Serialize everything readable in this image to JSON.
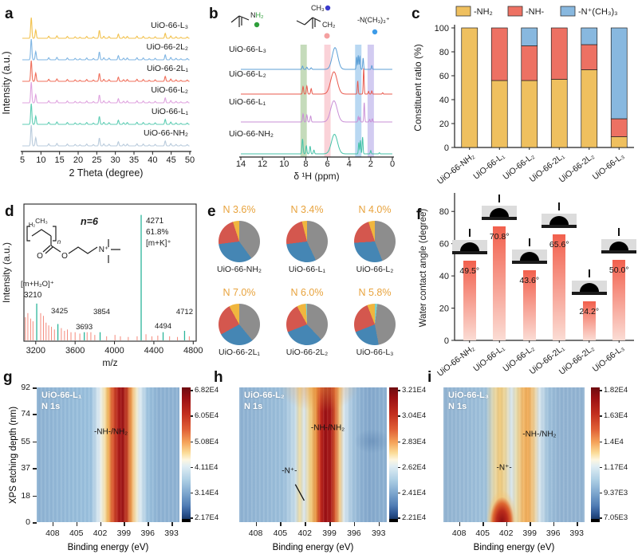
{
  "figure_title": "UiO-66 ligand-functionalization characterization figure",
  "chart_data": [
    {
      "panel": "a",
      "letter": "a",
      "type": "line",
      "xlabel": "2 Theta (degree)",
      "ylabel": "Intensity (a.u.)",
      "xlim": [
        5,
        50
      ],
      "xticks": [
        5,
        10,
        15,
        20,
        25,
        30,
        35,
        40,
        45,
        50
      ],
      "peak_positions": [
        [
          7.4,
          1.0
        ],
        [
          8.6,
          0.4
        ],
        [
          12.1,
          0.1
        ],
        [
          14.3,
          0.12
        ],
        [
          17.1,
          0.09
        ],
        [
          19.2,
          0.07
        ],
        [
          20.5,
          0.05
        ],
        [
          22.3,
          0.09
        ],
        [
          24.1,
          0.06
        ],
        [
          25.7,
          0.38
        ],
        [
          26.9,
          0.1
        ],
        [
          28.3,
          0.08
        ],
        [
          30.8,
          0.2
        ],
        [
          32.2,
          0.08
        ],
        [
          33.2,
          0.09
        ],
        [
          35.8,
          0.1
        ],
        [
          37.5,
          0.09
        ],
        [
          39.1,
          0.05
        ],
        [
          40.7,
          0.07
        ],
        [
          43.4,
          0.24
        ],
        [
          44.9,
          0.11
        ],
        [
          46.3,
          0.07
        ],
        [
          47.6,
          0.05
        ],
        [
          49.3,
          0.06
        ]
      ],
      "series": [
        {
          "label": "UiO-66-NH₂",
          "color": "#B9CBDC"
        },
        {
          "label": "UiO-66-L₁",
          "color": "#5FCDB4"
        },
        {
          "label": "UiO-66-L₂",
          "color": "#DFA3DF"
        },
        {
          "label": "UiO-66-2L₁",
          "color": "#F0705C"
        },
        {
          "label": "UiO-66-2L₂",
          "color": "#7FB5E3"
        },
        {
          "label": "UiO-66-L₃",
          "color": "#F2C24E"
        }
      ]
    },
    {
      "panel": "b",
      "letter": "b",
      "type": "line",
      "xlabel": "δ ¹H (ppm)",
      "xlim": [
        14,
        0
      ],
      "xticks": [
        14,
        12,
        10,
        8,
        6,
        4,
        2,
        0
      ],
      "bands": [
        {
          "ppm": 8.2,
          "color": "#7FB069",
          "opacity": 0.45
        },
        {
          "ppm": 6.0,
          "color": "#F59CA9",
          "opacity": 0.45
        },
        {
          "ppm": 3.15,
          "color": "#7FB8E8",
          "opacity": 0.55
        },
        {
          "ppm": 2.0,
          "color": "#9B8CE0",
          "opacity": 0.45
        }
      ],
      "series": [
        {
          "label": "UiO-66-NH₂",
          "color": "#45C3A8",
          "peaks": [
            [
              8.3,
              0.55,
              0.05
            ],
            [
              7.95,
              0.3,
              0.05
            ],
            [
              7.6,
              0.28,
              0.05
            ],
            [
              7.25,
              0.14,
              0.05
            ],
            [
              5.35,
              0.72,
              0.28
            ],
            [
              3.1,
              0.42,
              0.04
            ],
            [
              2.95,
              0.5,
              0.04
            ],
            [
              2.75,
              0.62,
              0.04
            ],
            [
              2.0,
              0.12,
              0.04
            ],
            [
              1.2,
              0.04,
              0.04
            ]
          ]
        },
        {
          "label": "UiO-66-L₁",
          "color": "#C98FD6",
          "peaks": [
            [
              8.25,
              0.3,
              0.05
            ],
            [
              7.9,
              0.26,
              0.05
            ],
            [
              7.55,
              0.22,
              0.05
            ],
            [
              5.4,
              0.78,
              0.3
            ],
            [
              3.15,
              0.2,
              0.04
            ],
            [
              3.0,
              0.18,
              0.04
            ],
            [
              2.6,
              0.72,
              0.04
            ],
            [
              2.1,
              0.1,
              0.04
            ],
            [
              1.85,
              0.12,
              0.04
            ]
          ]
        },
        {
          "label": "UiO-66-L₂",
          "color": "#E85A4E",
          "peaks": [
            [
              8.25,
              0.28,
              0.05
            ],
            [
              7.9,
              0.3,
              0.05
            ],
            [
              7.5,
              0.2,
              0.05
            ],
            [
              5.4,
              0.82,
              0.3
            ],
            [
              3.2,
              0.48,
              0.04
            ],
            [
              2.65,
              0.95,
              0.04
            ],
            [
              2.2,
              0.1,
              0.04
            ],
            [
              1.9,
              0.12,
              0.04
            ],
            [
              0.9,
              0.05,
              0.04
            ]
          ]
        },
        {
          "label": "UiO-66-L₃",
          "color": "#5C9FD6",
          "peaks": [
            [
              8.3,
              0.12,
              0.05
            ],
            [
              7.9,
              0.08,
              0.05
            ],
            [
              7.5,
              0.06,
              0.05
            ],
            [
              5.3,
              0.8,
              0.26
            ],
            [
              3.3,
              0.46,
              0.04
            ],
            [
              3.15,
              0.52,
              0.04
            ],
            [
              3.0,
              0.48,
              0.04
            ],
            [
              2.7,
              0.42,
              0.04
            ],
            [
              1.9,
              0.14,
              0.04
            ]
          ]
        }
      ],
      "structures": {
        "amine_label": "NH₂",
        "methyl_label": "CH₃",
        "vinyl_label": "CH₂",
        "ammonium_label": "-N(CH₃)₃⁺",
        "dot_colors": {
          "amine": "#2E9E3A",
          "methyl": "#3A3ACC",
          "vinyl": "#F4A0A0",
          "ammonium": "#3D9BE8"
        }
      }
    },
    {
      "panel": "c",
      "letter": "c",
      "type": "stacked-bar",
      "ylabel": "Constituent ratio (%)",
      "ylim": [
        0,
        100
      ],
      "yticks": [
        0,
        20,
        40,
        60,
        80,
        100
      ],
      "categories": [
        "UiO-66-NH₂",
        "UiO-66-L₁",
        "UiO-66-L₂",
        "UiO-66-2L₁",
        "UiO-66-2L₂",
        "UiO-66-L₃"
      ],
      "series": [
        {
          "name": "-NH₂",
          "color": "#EFC05F",
          "values": [
            100,
            56,
            56,
            57,
            65,
            9
          ]
        },
        {
          "name": "-NH-",
          "color": "#ED7163",
          "values": [
            0,
            44,
            29,
            43,
            21,
            15
          ]
        },
        {
          "name": "-N⁺(CH₃)₃",
          "color": "#88B8DF",
          "values": [
            0,
            0,
            15,
            0,
            14,
            76
          ]
        }
      ]
    },
    {
      "panel": "d",
      "letter": "d",
      "type": "stem",
      "xlabel": "m/z",
      "ylabel": "Intensity (a.u.)",
      "xlim": [
        3080,
        4830
      ],
      "xticks": [
        3200,
        3600,
        4000,
        4400,
        4800
      ],
      "main_peaks": [
        {
          "mz": 3210,
          "h": 0.27,
          "label": "3210",
          "note": "[m+H₂O]⁺"
        },
        {
          "mz": 3425,
          "h": 0.12,
          "label": "3425"
        },
        {
          "mz": 3693,
          "h": 0.06,
          "label": "3693"
        },
        {
          "mz": 3854,
          "h": 0.06,
          "label": "3854"
        },
        {
          "mz": 4271,
          "h": 0.92,
          "label": "4271",
          "note2": "61.8%",
          "note3": "[m+K]⁺"
        },
        {
          "mz": 4494,
          "h": 0.06,
          "label": "4494"
        },
        {
          "mz": 4712,
          "h": 0.07,
          "label": "4712"
        }
      ],
      "minor_peaks": [
        [
          3095,
          0.17
        ],
        [
          3120,
          0.2
        ],
        [
          3148,
          0.16
        ],
        [
          3172,
          0.14
        ],
        [
          3250,
          0.2
        ],
        [
          3278,
          0.18
        ],
        [
          3305,
          0.13
        ],
        [
          3332,
          0.11
        ],
        [
          3360,
          0.1
        ],
        [
          3390,
          0.08
        ],
        [
          3460,
          0.09
        ],
        [
          3492,
          0.07
        ],
        [
          3522,
          0.08
        ],
        [
          3558,
          0.06
        ],
        [
          3600,
          0.06
        ],
        [
          3648,
          0.05
        ],
        [
          3722,
          0.06
        ],
        [
          3760,
          0.06
        ],
        [
          3800,
          0.04
        ],
        [
          3920,
          0.03
        ],
        [
          4005,
          0.04
        ],
        [
          4060,
          0.03
        ],
        [
          4140,
          0.025
        ],
        [
          4230,
          0.03
        ],
        [
          4320,
          0.045
        ],
        [
          4380,
          0.03
        ],
        [
          4440,
          0.035
        ],
        [
          4560,
          0.03
        ],
        [
          4640,
          0.025
        ],
        [
          4760,
          0.03
        ]
      ],
      "annotation_n": "n=6",
      "colors": {
        "minor": "#F4897B",
        "main": "#2BB59A",
        "oxygen": "#E03020",
        "nitrogen": "#3D7BE8"
      }
    },
    {
      "panel": "e",
      "letter": "e",
      "type": "pie",
      "colors": {
        "yellow": "#F0B63E",
        "gray": "#8D8D8D",
        "blue": "#4586B4",
        "red": "#D4574E",
        "teal": "#7ECEC4"
      },
      "n_label_color": "#E8A33D",
      "pies": [
        {
          "name": "UiO-66-NH₂",
          "n_label": "N 3.6%",
          "slices": [
            [
              "gray",
              40
            ],
            [
              "blue",
              33
            ],
            [
              "red",
              22
            ],
            [
              "yellow",
              5
            ]
          ]
        },
        {
          "name": "UiO-66-L₁",
          "n_label": "N 3.4%",
          "slices": [
            [
              "gray",
              43
            ],
            [
              "blue",
              30
            ],
            [
              "red",
              23
            ],
            [
              "yellow",
              4
            ]
          ]
        },
        {
          "name": "UiO-66-L₂",
          "n_label": "N 4.0%",
          "slices": [
            [
              "gray",
              44
            ],
            [
              "blue",
              30
            ],
            [
              "red",
              21
            ],
            [
              "yellow",
              5
            ]
          ]
        },
        {
          "name": "UiO-66-2L₁",
          "n_label": "N 7.0%",
          "slices": [
            [
              "gray",
              39
            ],
            [
              "blue",
              28
            ],
            [
              "red",
              25
            ],
            [
              "yellow",
              8
            ]
          ]
        },
        {
          "name": "UiO-66-2L₂",
          "n_label": "N 6.0%",
          "slices": [
            [
              "gray",
              38
            ],
            [
              "blue",
              31
            ],
            [
              "red",
              23
            ],
            [
              "yellow",
              7
            ],
            [
              "teal",
              1
            ]
          ]
        },
        {
          "name": "UiO-66-L₃",
          "n_label": "N 5.8%",
          "slices": [
            [
              "teal",
              2
            ],
            [
              "gray",
              45
            ],
            [
              "blue",
              22
            ],
            [
              "red",
              25
            ],
            [
              "yellow",
              6
            ]
          ]
        }
      ]
    },
    {
      "panel": "f",
      "letter": "f",
      "type": "bar",
      "ylabel": "Water contact angle (degree)",
      "ylim": [
        0,
        90
      ],
      "yticks": [
        0,
        20,
        40,
        60,
        80
      ],
      "categories": [
        "UiO-66-NH₂",
        "UiO-66-L₁",
        "UiO-66-L₂",
        "UiO-66-2L₁",
        "UiO-66-2L₂",
        "UiO-66-L₃"
      ],
      "values": [
        49.5,
        70.8,
        43.6,
        65.6,
        24.2,
        50.0
      ],
      "value_labels": [
        "49.5°",
        "70.8°",
        "43.6°",
        "65.6°",
        "24.2°",
        "50.0°"
      ],
      "bar_gradient": [
        "#F2604D",
        "#FBDCD4"
      ]
    },
    {
      "panel": "g",
      "letter": "g",
      "type": "heatmap",
      "title": "UiO-66-L₁",
      "subtitle": "N 1s",
      "xlabel": "Binding energy (eV)",
      "ylabel": "XPS etching depth (nm)",
      "xlim": [
        410,
        392
      ],
      "xticks": [
        408,
        405,
        402,
        399,
        396,
        393
      ],
      "yticks": [
        92,
        74,
        55,
        37,
        18,
        0
      ],
      "colorbar_ticks": [
        "6.82E4",
        "6.05E4",
        "5.08E4",
        "4.11E4",
        "3.14E4",
        "2.17E4"
      ],
      "annotations": [
        {
          "text": "-NH-/NH₂",
          "fx": 0.52,
          "fy": 0.33
        }
      ],
      "heat_stops": [
        [
          0,
          "#8FB3D3"
        ],
        [
          0.38,
          "#9CC2DE"
        ],
        [
          0.44,
          "#E3EEF3"
        ],
        [
          0.47,
          "#F7E9BE"
        ],
        [
          0.5,
          "#F2B75B"
        ],
        [
          0.53,
          "#DE5B2E"
        ],
        [
          0.57,
          "#B01E18"
        ],
        [
          0.6,
          "#9C1113"
        ],
        [
          0.63,
          "#C23A22"
        ],
        [
          0.66,
          "#EE9A4C"
        ],
        [
          0.69,
          "#F7E3B0"
        ],
        [
          0.72,
          "#E3EEF3"
        ],
        [
          0.78,
          "#9CC2DE"
        ],
        [
          0.85,
          "#8FB3D3"
        ],
        [
          1,
          "#8FB3D3"
        ]
      ],
      "overlays": []
    },
    {
      "panel": "h",
      "letter": "h",
      "type": "heatmap",
      "title": "UiO-66-L₂",
      "subtitle": "N 1s",
      "xlabel": "Binding energy (eV)",
      "xlim": [
        410,
        392
      ],
      "xticks": [
        408,
        405,
        402,
        399,
        396,
        393
      ],
      "colorbar_ticks": [
        "3.21E4",
        "3.04E4",
        "2.83E4",
        "2.62E4",
        "2.41E4",
        "2.21E4"
      ],
      "annotations": [
        {
          "text": "-NH-/NH₂",
          "fx": 0.6,
          "fy": 0.3
        },
        {
          "text": "-N⁺-",
          "fx": 0.34,
          "fy": 0.62,
          "line": [
            0.38,
            0.72,
            0.44,
            0.84
          ]
        }
      ],
      "heat_stops": [
        [
          0,
          "#8FB2D2"
        ],
        [
          0.3,
          "#9DC0DB"
        ],
        [
          0.38,
          "#C8DDEA"
        ],
        [
          0.41,
          "#EBDBA4"
        ],
        [
          0.44,
          "#D9E6EE"
        ],
        [
          0.48,
          "#F2D489"
        ],
        [
          0.52,
          "#E8923E"
        ],
        [
          0.55,
          "#C52A1B"
        ],
        [
          0.58,
          "#9A0F12"
        ],
        [
          0.62,
          "#A81715"
        ],
        [
          0.65,
          "#D95E2F"
        ],
        [
          0.68,
          "#F2C883"
        ],
        [
          0.71,
          "#DCE9F0"
        ],
        [
          0.76,
          "#A9C8E0"
        ],
        [
          0.82,
          "#8FB2D2"
        ],
        [
          0.88,
          "#84A9CC"
        ],
        [
          1,
          "#8FB2D2"
        ]
      ],
      "overlays": [
        "radial-gradient(ellipse 38% 26% at 54% 0%, rgba(234,148,60,0.55), rgba(234,148,60,0) 70%)",
        "radial-gradient(ellipse 16% 12% at 90% 40%, rgba(70,110,160,0.35), rgba(70,110,160,0) 75%)"
      ]
    },
    {
      "panel": "i",
      "letter": "i",
      "type": "heatmap",
      "title": "UiO-66-L₃",
      "subtitle": "N 1s",
      "xlabel": "Binding energy (eV)",
      "xlim": [
        410,
        392
      ],
      "xticks": [
        408,
        405,
        402,
        399,
        396,
        393
      ],
      "colorbar_ticks": [
        "1.82E4",
        "1.63E4",
        "1.4E4",
        "1.17E4",
        "9.37E3",
        "7.05E3"
      ],
      "annotations": [
        {
          "text": "-NH-/NH₂",
          "fx": 0.68,
          "fy": 0.35
        },
        {
          "text": "-N⁺-",
          "fx": 0.43,
          "fy": 0.6
        }
      ],
      "heat_stops": [
        [
          0,
          "#93B4D2"
        ],
        [
          0.3,
          "#A0C2DB"
        ],
        [
          0.36,
          "#E8D9A8"
        ],
        [
          0.4,
          "#F0C878"
        ],
        [
          0.44,
          "#EBD7A0"
        ],
        [
          0.48,
          "#D6E5EE"
        ],
        [
          0.52,
          "#E9DBA8"
        ],
        [
          0.56,
          "#F2B868"
        ],
        [
          0.6,
          "#F0A852"
        ],
        [
          0.64,
          "#F0CC8E"
        ],
        [
          0.68,
          "#D8E6EE"
        ],
        [
          0.74,
          "#A0C2DB"
        ],
        [
          0.82,
          "#93B4D2"
        ],
        [
          1,
          "#93B4D2"
        ]
      ],
      "overlays": [
        "radial-gradient(ellipse 11% 24% at 41.5% 100%, #8C0E12 0%, #B92A1B 35%, #DD6630 58%, rgba(242,196,120,0.55) 78%, rgba(242,196,120,0) 100%)"
      ]
    }
  ]
}
